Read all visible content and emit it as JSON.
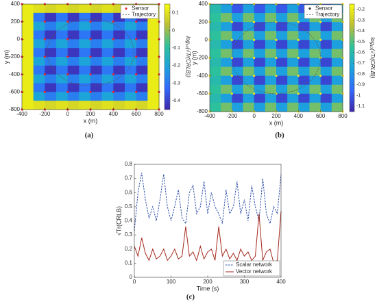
{
  "chart_data": [
    {
      "type": "heatmap",
      "panel_label": "(a)",
      "xlabel": "x (m)",
      "ylabel": "y (m)",
      "colorbar_label": "log₁₀(√Tr(CRLB))",
      "xlim": [
        -400,
        800
      ],
      "ylim": [
        -800,
        400
      ],
      "xticks": [
        -400,
        -200,
        0,
        200,
        400,
        600,
        800
      ],
      "yticks": [
        -800,
        -600,
        -400,
        -200,
        0,
        200,
        400
      ],
      "clim": [
        -0.45,
        0.15
      ],
      "cticks": [
        -0.4,
        -0.3,
        -0.2,
        -0.1,
        0,
        0.1
      ],
      "legend": [
        "Sensor",
        "Trajectory"
      ],
      "sensor_color": "#e8262a",
      "sensor_x": [
        -400,
        -200,
        0,
        200,
        400,
        600,
        800
      ],
      "sensor_y": [
        -800,
        -600,
        -400,
        -200,
        0,
        200,
        400
      ],
      "trajectory": {
        "center": [
          200,
          -150
        ],
        "radius": 380
      },
      "z": [
        [
          0.12,
          0.1,
          0.08,
          0.1,
          0.08,
          0.1,
          0.08,
          0.1,
          0.08,
          0.1,
          0.08,
          0.12
        ],
        [
          0.12,
          -0.3,
          -0.42,
          -0.3,
          -0.42,
          -0.3,
          -0.42,
          -0.3,
          -0.42,
          -0.3,
          -0.42,
          0.12
        ],
        [
          0.12,
          -0.2,
          -0.28,
          -0.2,
          -0.28,
          -0.2,
          -0.28,
          -0.2,
          -0.28,
          -0.2,
          -0.28,
          0.12
        ],
        [
          0.12,
          -0.3,
          -0.42,
          -0.3,
          -0.42,
          -0.3,
          -0.42,
          -0.3,
          -0.42,
          -0.3,
          -0.42,
          0.12
        ],
        [
          0.12,
          -0.2,
          -0.28,
          -0.2,
          -0.28,
          -0.2,
          -0.28,
          -0.2,
          -0.28,
          -0.2,
          -0.28,
          0.12
        ],
        [
          0.12,
          -0.3,
          -0.42,
          -0.3,
          -0.42,
          -0.3,
          -0.42,
          -0.3,
          -0.42,
          -0.3,
          -0.42,
          0.12
        ],
        [
          0.12,
          -0.2,
          -0.28,
          -0.2,
          -0.28,
          -0.2,
          -0.28,
          -0.2,
          -0.28,
          -0.2,
          -0.28,
          0.12
        ],
        [
          0.12,
          -0.3,
          -0.42,
          -0.3,
          -0.42,
          -0.3,
          -0.42,
          -0.3,
          -0.42,
          -0.3,
          -0.42,
          0.12
        ],
        [
          0.12,
          -0.2,
          -0.28,
          -0.2,
          -0.28,
          -0.2,
          -0.28,
          -0.2,
          -0.28,
          -0.2,
          -0.28,
          0.12
        ],
        [
          0.12,
          -0.3,
          -0.42,
          -0.3,
          -0.42,
          -0.3,
          -0.42,
          -0.3,
          -0.42,
          -0.3,
          -0.42,
          0.12
        ],
        [
          0.12,
          -0.2,
          -0.28,
          -0.2,
          -0.28,
          -0.2,
          -0.28,
          -0.2,
          -0.28,
          -0.2,
          -0.28,
          0.12
        ],
        [
          0.12,
          0.1,
          0.08,
          0.1,
          0.08,
          0.1,
          0.08,
          0.1,
          0.08,
          0.1,
          0.08,
          0.12
        ]
      ]
    },
    {
      "type": "heatmap",
      "panel_label": "(b)",
      "xlabel": "x (m)",
      "ylabel": "y (m)",
      "colorbar_label": "log₁₀(√Tr(CRLB))",
      "xlim": [
        -400,
        800
      ],
      "ylim": [
        -800,
        400
      ],
      "xticks": [
        -400,
        -200,
        0,
        200,
        400,
        600,
        800
      ],
      "yticks": [
        -800,
        -600,
        -400,
        -200,
        0,
        200,
        400
      ],
      "clim": [
        -1.15,
        -0.15
      ],
      "cticks": [
        -1.1,
        -1,
        -0.9,
        -0.8,
        -0.7,
        -0.6,
        -0.5,
        -0.4,
        -0.3,
        -0.2
      ],
      "legend": [
        "Sensor",
        "Trajectory"
      ],
      "sensor_color": "#f2e51c",
      "sensor_x": [
        -400,
        -200,
        0,
        200,
        400,
        600,
        800
      ],
      "sensor_y": [
        -800,
        -600,
        -400,
        -200,
        0,
        200,
        400
      ],
      "trajectory": {
        "center": [
          200,
          -200
        ],
        "radius": 400
      },
      "z": [
        [
          -0.6,
          -0.75,
          -1.0,
          -0.75,
          -1.0,
          -0.75,
          -1.0,
          -0.75,
          -1.0,
          -0.75,
          -1.0,
          -0.75
        ],
        [
          -0.55,
          -0.45,
          -0.75,
          -0.45,
          -0.75,
          -0.45,
          -0.75,
          -0.45,
          -0.75,
          -0.45,
          -0.75,
          -0.45
        ],
        [
          -0.6,
          -0.75,
          -1.05,
          -0.75,
          -1.05,
          -0.75,
          -1.05,
          -0.75,
          -1.05,
          -0.75,
          -1.05,
          -0.75
        ],
        [
          -0.55,
          -0.45,
          -0.75,
          -0.45,
          -0.75,
          -0.45,
          -0.75,
          -0.45,
          -0.75,
          -0.45,
          -0.75,
          -0.45
        ],
        [
          -0.6,
          -0.75,
          -1.05,
          -0.75,
          -1.05,
          -0.75,
          -1.05,
          -0.75,
          -1.05,
          -0.75,
          -1.05,
          -0.75
        ],
        [
          -0.55,
          -0.45,
          -0.75,
          -0.45,
          -0.75,
          -0.45,
          -0.75,
          -0.45,
          -0.75,
          -0.45,
          -0.75,
          -0.45
        ],
        [
          -0.6,
          -0.75,
          -1.05,
          -0.75,
          -1.05,
          -0.75,
          -1.05,
          -0.75,
          -1.05,
          -0.75,
          -1.05,
          -0.75
        ],
        [
          -0.55,
          -0.45,
          -0.75,
          -0.45,
          -0.75,
          -0.45,
          -0.75,
          -0.45,
          -0.75,
          -0.45,
          -0.75,
          -0.45
        ],
        [
          -0.6,
          -0.75,
          -1.05,
          -0.75,
          -1.05,
          -0.75,
          -1.05,
          -0.75,
          -1.05,
          -0.75,
          -1.05,
          -0.75
        ],
        [
          -0.55,
          -0.45,
          -0.75,
          -0.45,
          -0.75,
          -0.45,
          -0.75,
          -0.45,
          -0.75,
          -0.45,
          -0.75,
          -0.45
        ],
        [
          -0.6,
          -0.75,
          -1.05,
          -0.75,
          -1.05,
          -0.75,
          -1.05,
          -0.75,
          -1.05,
          -0.75,
          -1.05,
          -0.75
        ],
        [
          -0.55,
          -0.45,
          -0.75,
          -0.45,
          -0.75,
          -0.45,
          -0.75,
          -0.45,
          -0.75,
          -0.45,
          -0.75,
          -0.45
        ]
      ]
    },
    {
      "type": "line",
      "panel_label": "(c)",
      "xlabel": "Time (s)",
      "ylabel": "√Tr(CRLB)",
      "xlim": [
        0,
        400
      ],
      "ylim": [
        0,
        0.8
      ],
      "xticks": [
        0,
        100,
        200,
        300,
        400
      ],
      "yticks": [
        0,
        0.1,
        0.2,
        0.3,
        0.4,
        0.5,
        0.6,
        0.7,
        0.8
      ],
      "legend_position": "lower right",
      "x": [
        0,
        10,
        20,
        30,
        40,
        50,
        60,
        70,
        80,
        90,
        100,
        110,
        120,
        130,
        140,
        150,
        160,
        170,
        180,
        190,
        200,
        210,
        220,
        230,
        240,
        250,
        260,
        270,
        280,
        290,
        300,
        310,
        320,
        330,
        340,
        350,
        360,
        370,
        380,
        390,
        400
      ],
      "series": [
        {
          "name": "Scalar network",
          "color": "#2f4fa8",
          "dashed": true,
          "values": [
            0.33,
            0.6,
            0.74,
            0.55,
            0.42,
            0.5,
            0.4,
            0.55,
            0.73,
            0.5,
            0.4,
            0.5,
            0.62,
            0.42,
            0.38,
            0.6,
            0.65,
            0.45,
            0.5,
            0.68,
            0.45,
            0.6,
            0.5,
            0.45,
            0.38,
            0.62,
            0.45,
            0.5,
            0.68,
            0.45,
            0.55,
            0.4,
            0.65,
            0.5,
            0.4,
            0.7,
            0.45,
            0.38,
            0.5,
            0.45,
            0.73
          ]
        },
        {
          "name": "Vector network",
          "color": "#a3281c",
          "dashed": false,
          "values": [
            0.22,
            0.15,
            0.28,
            0.17,
            0.12,
            0.2,
            0.13,
            0.15,
            0.2,
            0.12,
            0.15,
            0.2,
            0.13,
            0.15,
            0.36,
            0.15,
            0.18,
            0.12,
            0.22,
            0.13,
            0.18,
            0.2,
            0.12,
            0.36,
            0.15,
            0.2,
            0.13,
            0.17,
            0.12,
            0.2,
            0.15,
            0.18,
            0.12,
            0.15,
            0.45,
            0.12,
            0.18,
            0.2,
            0.1,
            0.12,
            0.47
          ]
        }
      ]
    }
  ]
}
